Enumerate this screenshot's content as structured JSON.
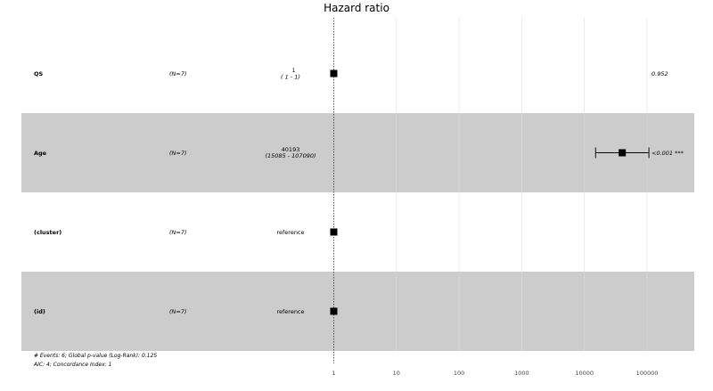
{
  "chart_data": {
    "type": "forest",
    "title": "Hazard ratio",
    "x_scale": "log10",
    "xlim": [
      0.8,
      600000
    ],
    "x_ticks": [
      1,
      10,
      100,
      1000,
      10000,
      100000
    ],
    "x_tick_labels": [
      "1",
      "10",
      "100",
      "1000",
      "10000",
      "100000"
    ],
    "reference_line": 1,
    "rows": [
      {
        "variable": "QS",
        "n": "(N=7)",
        "estimate_label": "1",
        "ci_label": "(   1 -     1)",
        "hr": 1,
        "ci": [
          1,
          1
        ],
        "p_label": "0.952",
        "shaded": false,
        "reference": false
      },
      {
        "variable": "Age",
        "n": "(N=7)",
        "estimate_label": "40193",
        "ci_label": "(15085 - 107090)",
        "hr": 40193,
        "ci": [
          15085,
          107090
        ],
        "p_label": "<0.001 ***",
        "shaded": true,
        "reference": false
      },
      {
        "variable": "(cluster)",
        "n": "(N=7)",
        "estimate_label": "reference",
        "ci_label": "",
        "hr": 1,
        "ci": [
          1,
          1
        ],
        "p_label": "",
        "shaded": false,
        "reference": true
      },
      {
        "variable": "(id)",
        "n": "(N=7)",
        "estimate_label": "reference",
        "ci_label": "",
        "hr": 1,
        "ci": [
          1,
          1
        ],
        "p_label": "",
        "shaded": true,
        "reference": true
      }
    ],
    "footnote": [
      "# Events: 6; Global p-value (Log-Rank): 0.125",
      "AIC: 4; Concordance Index: 1"
    ],
    "colors": {
      "shade": "#cccccc",
      "grid": "#dddddd",
      "marker": "#000000"
    }
  }
}
